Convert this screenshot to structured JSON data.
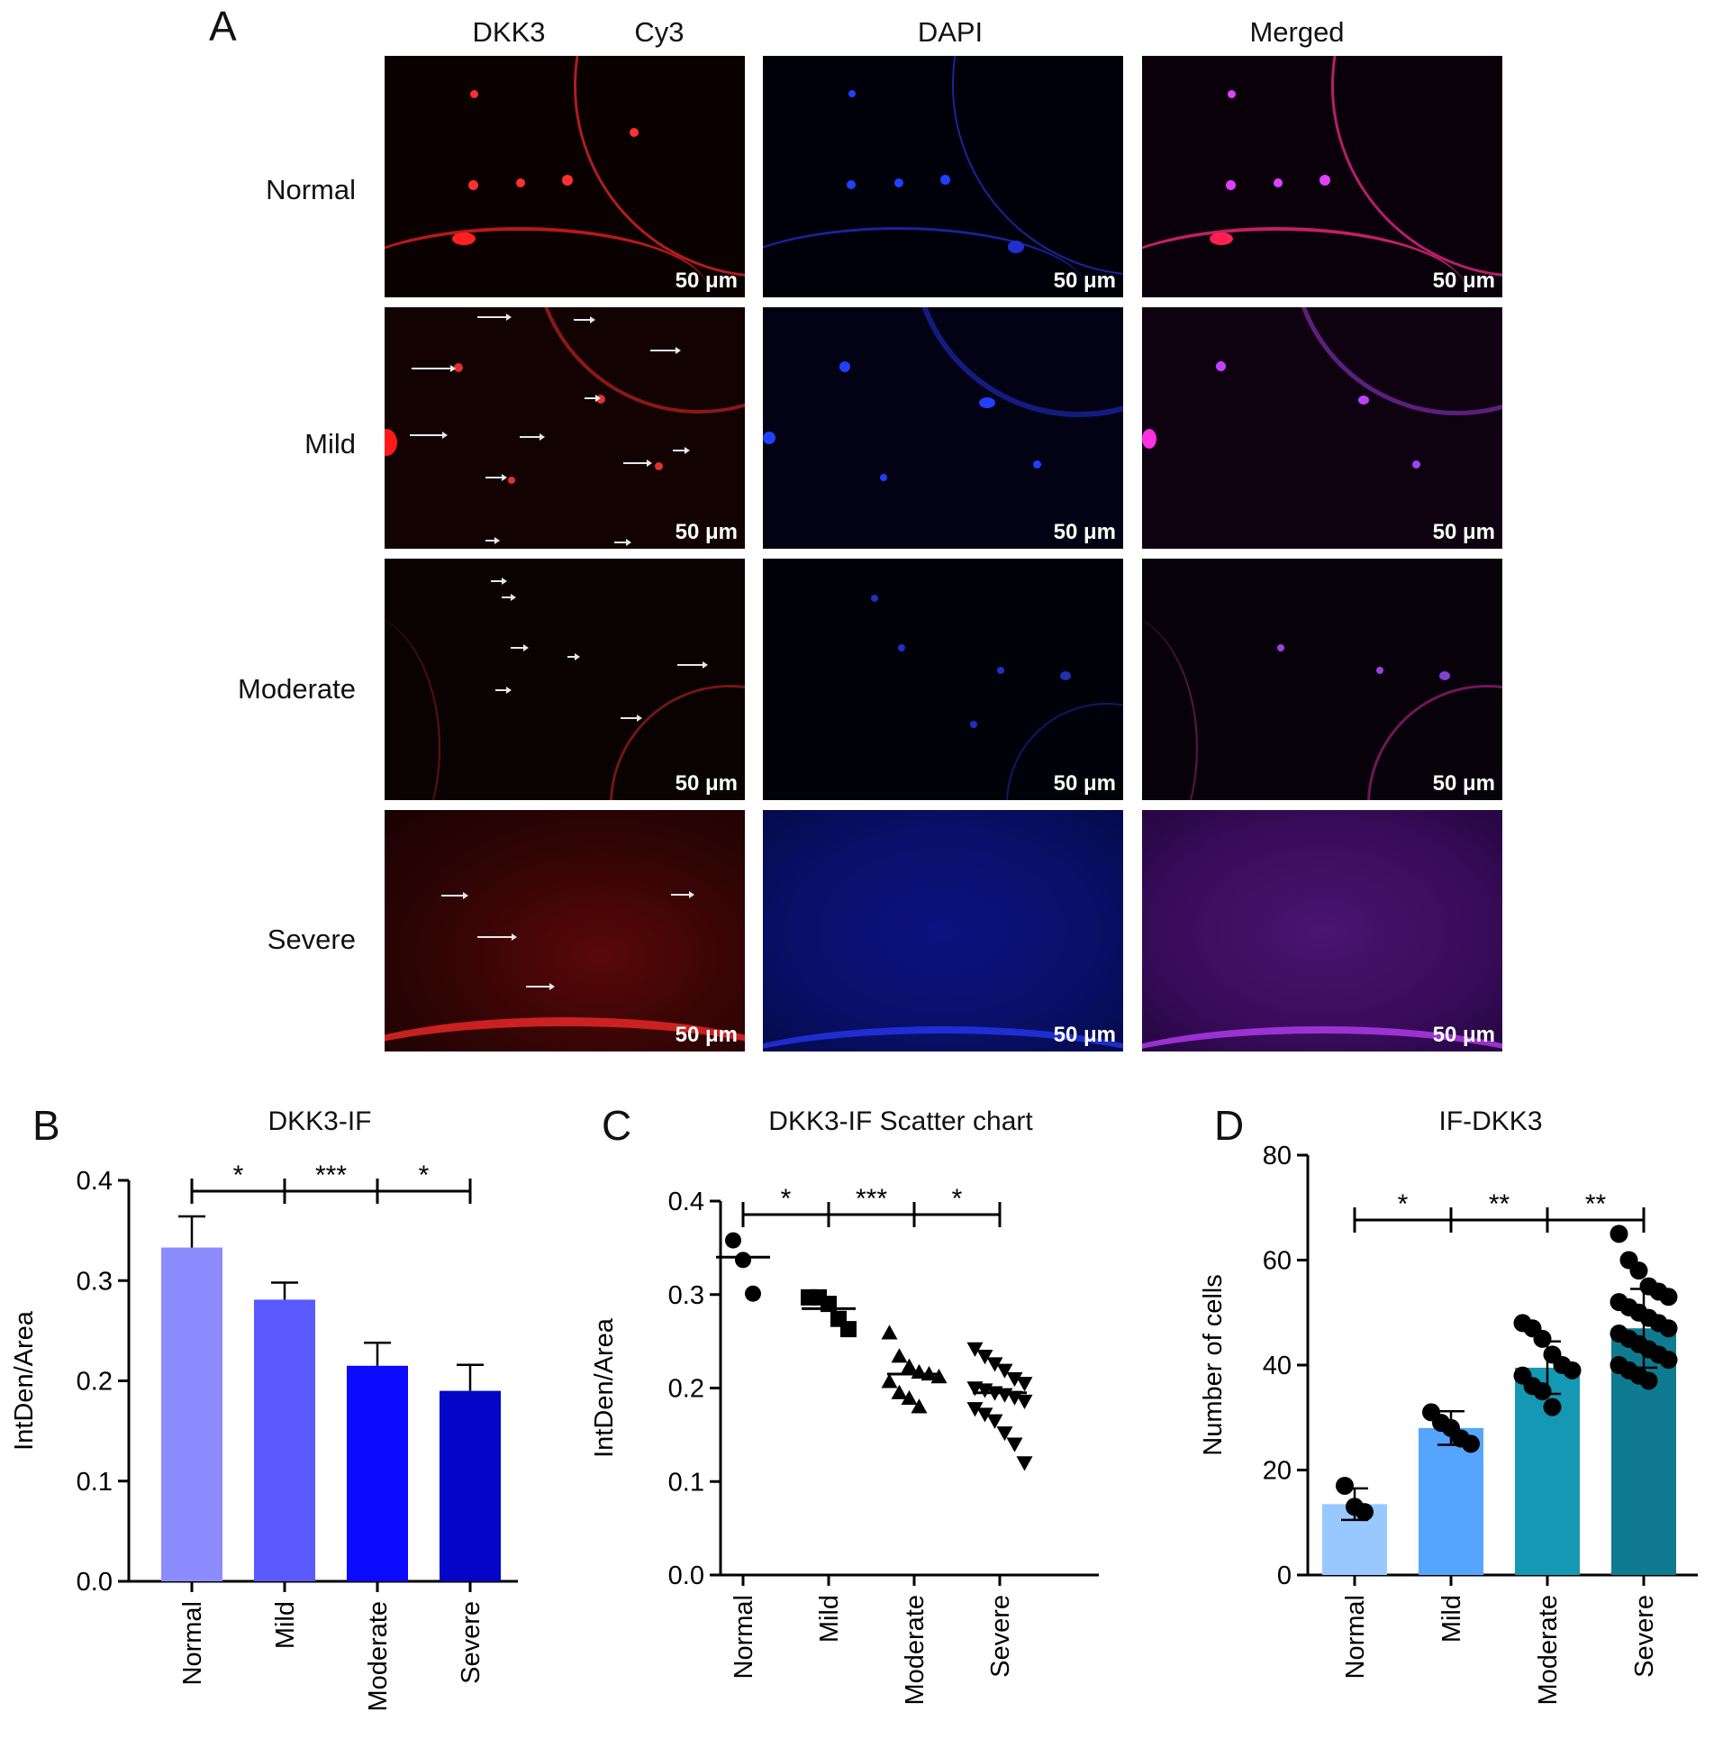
{
  "panel_a": {
    "letter": "A",
    "columns": [
      "DKK3",
      "Cy3",
      "DAPI",
      "Merged"
    ],
    "rows": [
      "Normal",
      "Mild",
      "Moderate",
      "Severe"
    ],
    "scale_bar": "50 μm"
  },
  "panel_b": {
    "letter": "B"
  },
  "panel_c": {
    "letter": "C"
  },
  "panel_d": {
    "letter": "D"
  },
  "colors": {
    "cy3": "#ff2020",
    "dapi": "#2030ff",
    "merged": "#d040ff",
    "b_bars": [
      "#8c8cff",
      "#5a5aff",
      "#0a0aff",
      "#0505c8"
    ],
    "d_bars": [
      "#99c8ff",
      "#55a5ff",
      "#1598b3",
      "#0f7a90"
    ]
  },
  "chart_data": [
    {
      "type": "bar",
      "title": "DKK3-IF",
      "ylabel": "IntDen/Area",
      "categories": [
        "Normal",
        "Mild",
        "Moderate",
        "Severe"
      ],
      "values": [
        0.333,
        0.281,
        0.215,
        0.19
      ],
      "errors": [
        0.031,
        0.017,
        0.023,
        0.026
      ],
      "ylim": [
        0,
        0.4
      ],
      "yticks": [
        "0.0",
        "0.1",
        "0.2",
        "0.3",
        "0.4"
      ],
      "significance": [
        {
          "from": "Normal",
          "to": "Mild",
          "label": "*"
        },
        {
          "from": "Mild",
          "to": "Moderate",
          "label": "***"
        },
        {
          "from": "Moderate",
          "to": "Severe",
          "label": "*"
        }
      ]
    },
    {
      "type": "scatter",
      "title": "DKK3-IF Scatter chart",
      "ylabel": "IntDen/Area",
      "categories": [
        "Normal",
        "Mild",
        "Moderate",
        "Severe"
      ],
      "markers": [
        "circle",
        "square",
        "triangle",
        "triangle-down"
      ],
      "means": [
        0.34,
        0.285,
        0.215,
        0.195
      ],
      "points": [
        [
          0.358,
          0.337,
          0.301
        ],
        [
          0.297,
          0.297,
          0.29,
          0.274,
          0.263
        ],
        [
          0.259,
          0.234,
          0.223,
          0.217,
          0.215,
          0.212,
          0.207,
          0.195,
          0.189,
          0.18
        ],
        [
          0.242,
          0.234,
          0.226,
          0.219,
          0.21,
          0.205,
          0.2,
          0.198,
          0.195,
          0.193,
          0.19,
          0.186,
          0.178,
          0.172,
          0.165,
          0.152,
          0.14,
          0.12
        ]
      ],
      "ylim": [
        0,
        0.4
      ],
      "yticks": [
        "0.0",
        "0.1",
        "0.2",
        "0.3",
        "0.4"
      ],
      "significance": [
        {
          "from": "Normal",
          "to": "Mild",
          "label": "*"
        },
        {
          "from": "Mild",
          "to": "Moderate",
          "label": "***"
        },
        {
          "from": "Moderate",
          "to": "Severe",
          "label": "*"
        }
      ]
    },
    {
      "type": "bar",
      "title": "IF-DKK3",
      "ylabel": "Number of cells",
      "categories": [
        "Normal",
        "Mild",
        "Moderate",
        "Severe"
      ],
      "values": [
        13.5,
        28.0,
        39.5,
        47.0
      ],
      "errors": [
        3.0,
        3.2,
        5.0,
        7.5
      ],
      "points": [
        [
          17,
          13,
          12
        ],
        [
          31,
          29,
          28,
          26,
          25
        ],
        [
          48,
          47,
          45,
          42,
          40,
          39,
          38,
          36,
          35,
          32
        ],
        [
          65,
          60,
          58,
          55,
          54,
          53,
          52,
          51,
          50,
          49,
          48,
          47,
          46,
          45,
          44,
          43,
          42,
          41,
          40,
          39,
          38,
          37
        ]
      ],
      "ylim": [
        0,
        80
      ],
      "yticks": [
        "0",
        "20",
        "40",
        "60",
        "80"
      ],
      "significance": [
        {
          "from": "Normal",
          "to": "Mild",
          "label": "*"
        },
        {
          "from": "Mild",
          "to": "Moderate",
          "label": "**"
        },
        {
          "from": "Moderate",
          "to": "Severe",
          "label": "**"
        }
      ]
    }
  ]
}
